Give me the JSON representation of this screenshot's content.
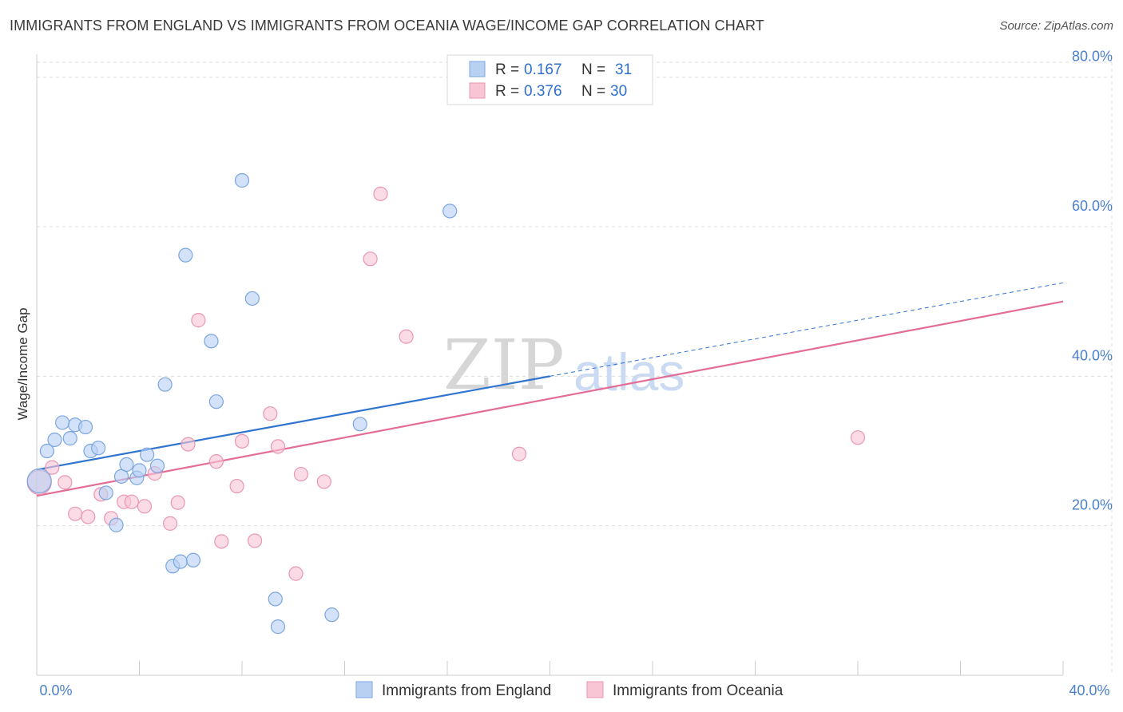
{
  "title": "IMMIGRANTS FROM ENGLAND VS IMMIGRANTS FROM OCEANIA WAGE/INCOME GAP CORRELATION CHART",
  "source": "Source: ZipAtlas.com",
  "watermark": {
    "zip": "ZIP",
    "atlas": "atlas"
  },
  "colors": {
    "england_fill": "#b8d1f3",
    "england_stroke": "#7aa6e0",
    "england_line": "#2f74d0",
    "oceania_fill": "#f8c5d5",
    "oceania_stroke": "#e997b1",
    "oceania_line": "#e46d96",
    "grid": "#dddddd",
    "axis_label": "#4a7fd0"
  },
  "legend": {
    "rows": [
      {
        "r_label": "R =",
        "r_value": "0.167",
        "n_label": "N =",
        "n_value": "31"
      },
      {
        "r_label": "R =",
        "r_value": "0.376",
        "n_label": "N =",
        "n_value": "30"
      }
    ]
  },
  "bottom_legend": [
    "Immigrants from England",
    "Immigrants from Oceania"
  ],
  "chart_data": {
    "type": "scatter",
    "title": "IMMIGRANTS FROM ENGLAND VS IMMIGRANTS FROM OCEANIA WAGE/INCOME GAP CORRELATION CHART",
    "xlabel": "",
    "ylabel": "Wage/Income Gap",
    "xlim": [
      0,
      40
    ],
    "ylim": [
      0,
      82
    ],
    "x_tick_labels": [
      "0.0%",
      "40.0%"
    ],
    "y_ticks": [
      20,
      40,
      60,
      80
    ],
    "y_tick_labels": [
      "20.0%",
      "40.0%",
      "60.0%",
      "80.0%"
    ],
    "series": [
      {
        "name": "Immigrants from England",
        "R": 0.167,
        "N": 31,
        "trend": {
          "x0": 0,
          "y0": 27.5,
          "x1": 20,
          "y1": 40.0,
          "dashed_to_x": 40,
          "dashed_to_y": 52.5
        },
        "points": [
          {
            "x": 0.1,
            "y": 26.0,
            "big": true
          },
          {
            "x": 0.4,
            "y": 30.0
          },
          {
            "x": 0.7,
            "y": 31.5
          },
          {
            "x": 1.0,
            "y": 33.8
          },
          {
            "x": 1.3,
            "y": 31.7
          },
          {
            "x": 1.5,
            "y": 33.5
          },
          {
            "x": 1.9,
            "y": 33.2
          },
          {
            "x": 2.1,
            "y": 30.0
          },
          {
            "x": 2.4,
            "y": 30.4
          },
          {
            "x": 2.7,
            "y": 24.4
          },
          {
            "x": 3.1,
            "y": 20.1
          },
          {
            "x": 3.3,
            "y": 26.6
          },
          {
            "x": 3.5,
            "y": 28.2
          },
          {
            "x": 3.9,
            "y": 26.4
          },
          {
            "x": 4.0,
            "y": 27.4
          },
          {
            "x": 4.3,
            "y": 29.5
          },
          {
            "x": 4.7,
            "y": 28.0
          },
          {
            "x": 5.0,
            "y": 38.9
          },
          {
            "x": 5.3,
            "y": 14.6
          },
          {
            "x": 5.6,
            "y": 15.2
          },
          {
            "x": 5.8,
            "y": 56.2
          },
          {
            "x": 6.1,
            "y": 15.4
          },
          {
            "x": 6.8,
            "y": 44.7
          },
          {
            "x": 7.0,
            "y": 36.6
          },
          {
            "x": 8.0,
            "y": 66.2
          },
          {
            "x": 8.4,
            "y": 50.4
          },
          {
            "x": 9.3,
            "y": 10.2
          },
          {
            "x": 9.4,
            "y": 6.5
          },
          {
            "x": 11.5,
            "y": 8.1
          },
          {
            "x": 12.6,
            "y": 33.6
          },
          {
            "x": 16.1,
            "y": 62.1
          }
        ]
      },
      {
        "name": "Immigrants from Oceania",
        "R": 0.376,
        "N": 30,
        "trend": {
          "x0": 0,
          "y0": 24.0,
          "x1": 40,
          "y1": 50.0
        },
        "points": [
          {
            "x": 0.1,
            "y": 25.8,
            "big": true
          },
          {
            "x": 0.6,
            "y": 27.8
          },
          {
            "x": 1.1,
            "y": 25.8
          },
          {
            "x": 1.5,
            "y": 21.6
          },
          {
            "x": 2.0,
            "y": 21.2
          },
          {
            "x": 2.5,
            "y": 24.2
          },
          {
            "x": 2.9,
            "y": 21.0
          },
          {
            "x": 3.4,
            "y": 23.2
          },
          {
            "x": 3.7,
            "y": 23.2
          },
          {
            "x": 4.2,
            "y": 22.6
          },
          {
            "x": 4.6,
            "y": 27.0
          },
          {
            "x": 5.2,
            "y": 20.3
          },
          {
            "x": 5.5,
            "y": 23.1
          },
          {
            "x": 5.9,
            "y": 30.9
          },
          {
            "x": 6.3,
            "y": 47.5
          },
          {
            "x": 7.0,
            "y": 28.6
          },
          {
            "x": 7.2,
            "y": 17.9
          },
          {
            "x": 7.8,
            "y": 25.3
          },
          {
            "x": 8.0,
            "y": 31.3
          },
          {
            "x": 8.5,
            "y": 18.0
          },
          {
            "x": 9.1,
            "y": 35.0
          },
          {
            "x": 9.4,
            "y": 30.6
          },
          {
            "x": 10.1,
            "y": 13.6
          },
          {
            "x": 10.3,
            "y": 26.9
          },
          {
            "x": 11.2,
            "y": 25.9
          },
          {
            "x": 13.0,
            "y": 55.7
          },
          {
            "x": 13.4,
            "y": 64.4
          },
          {
            "x": 14.4,
            "y": 45.3
          },
          {
            "x": 18.8,
            "y": 29.6
          },
          {
            "x": 32.0,
            "y": 31.8
          }
        ]
      }
    ]
  }
}
